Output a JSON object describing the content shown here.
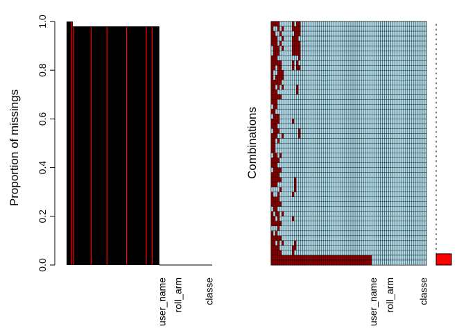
{
  "chart_data": [
    {
      "type": "bar",
      "ylabel": "Proportion of missings",
      "ylim": [
        0,
        1
      ],
      "yticks": [
        0.0,
        0.2,
        0.4,
        0.6,
        0.8,
        1.0
      ],
      "ytick_labels": [
        "0.0",
        "0.2",
        "0.4",
        "0.6",
        "0.8",
        "1.0"
      ],
      "x_tick_labels": [
        "user_name",
        "roll_arm",
        "classe"
      ],
      "x_tick_label_column_index": [
        48,
        56,
        72
      ],
      "n_columns": 74,
      "missing_column_values": [
        1.0,
        1.0,
        1.0,
        0.98,
        0.98,
        0.98,
        0.98,
        0.98,
        0.98,
        0.98,
        0.98,
        0.98,
        0.98,
        0.98,
        0.98,
        0.98,
        0.98,
        0.98,
        0.98,
        0.98,
        0.98,
        0.98,
        0.98,
        0.98,
        0.98,
        0.98,
        0.98,
        0.98,
        0.98,
        0.98,
        0.98,
        0.98,
        0.98,
        0.98,
        0.98,
        0.98,
        0.98,
        0.98,
        0.98,
        0.98,
        0.98,
        0.98,
        0.98,
        0.98,
        0.98,
        0.98,
        0.98
      ],
      "highlight_column_index": [
        2,
        3,
        12,
        20,
        30,
        40,
        43
      ],
      "bar_color": "#000000",
      "highlight_color": "#ff0000"
    },
    {
      "type": "heatmap",
      "ylabel": "Combinations",
      "x_tick_labels": [
        "user_name",
        "roll_arm",
        "classe"
      ],
      "x_tick_label_column_index": [
        48,
        56,
        72
      ],
      "n_columns": 74,
      "n_combinations": 50,
      "missing_color": "#8b0000",
      "present_color": "#add8e6",
      "frequency_bar_color": "#ff0000",
      "frequency_largest_share": 0.05
    }
  ]
}
